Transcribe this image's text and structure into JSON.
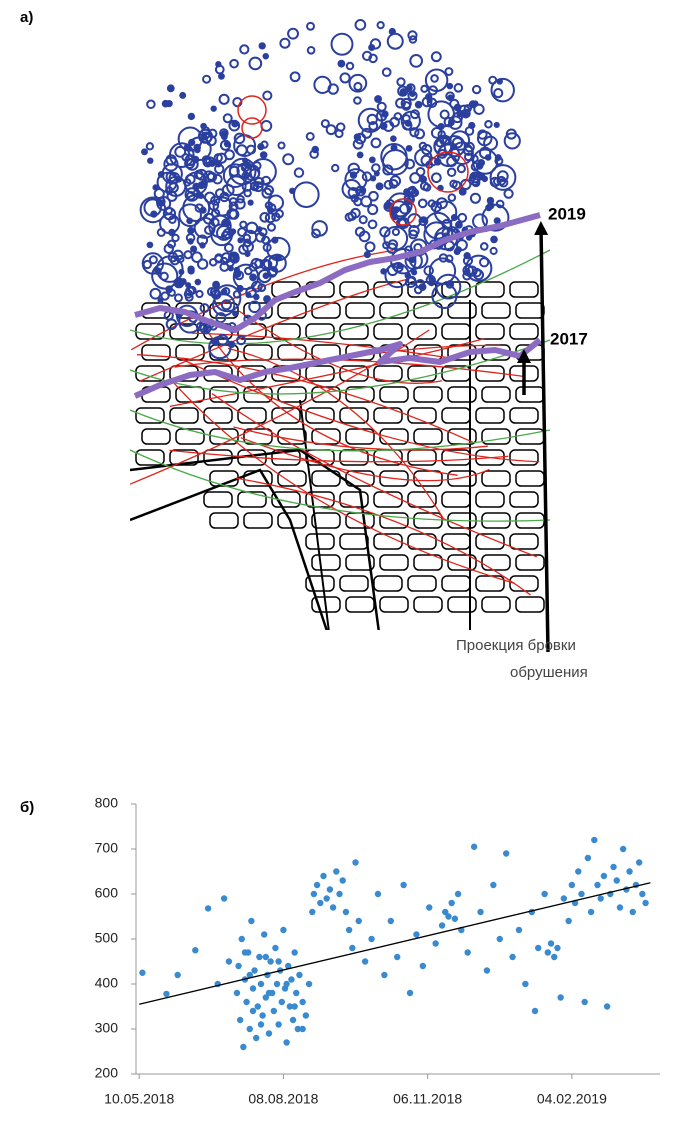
{
  "panel_labels": [
    "а)",
    "б)"
  ],
  "map": {
    "label_2019": "2019",
    "label_2017": "2017",
    "caption": [
      "Проекция бровки",
      "обрушения"
    ]
  },
  "chart_data": {
    "type": "scatter",
    "color": "#3a8ad0",
    "xlim": [
      "08.05.2018",
      "31.03.2019"
    ],
    "xticks": [
      "10.05.2018",
      "08.08.2018",
      "06.11.2018",
      "04.02.2019"
    ],
    "ylim": [
      200,
      800
    ],
    "yticks": [
      200,
      300,
      400,
      500,
      600,
      700,
      800
    ],
    "trendline": {
      "color": "#000000",
      "x": [
        "10.05.2018",
        "25.03.2019"
      ],
      "values": [
        355,
        625
      ]
    },
    "x": [
      "12.05.2018",
      "27.05.2018",
      "03.06.2018",
      "14.06.2018",
      "22.06.2018",
      "28.06.2018",
      "02.07.2018",
      "05.07.2018",
      "10.07.2018",
      "11.07.2018",
      "12.07.2018",
      "13.07.2018",
      "14.07.2018",
      "15.07.2018",
      "16.07.2018",
      "17.07.2018",
      "18.07.2018",
      "19.07.2018",
      "20.07.2018",
      "21.07.2018",
      "22.07.2018",
      "23.07.2018",
      "24.07.2018",
      "25.07.2018",
      "26.07.2018",
      "27.07.2018",
      "28.07.2018",
      "29.07.2018",
      "30.07.2018",
      "31.07.2018",
      "01.08.2018",
      "02.08.2018",
      "03.08.2018",
      "04.08.2018",
      "05.08.2018",
      "06.08.2018",
      "07.08.2018",
      "08.08.2018",
      "09.08.2018",
      "10.08.2018",
      "11.08.2018",
      "12.08.2018",
      "13.08.2018",
      "14.08.2018",
      "15.08.2018",
      "16.08.2018",
      "17.08.2018",
      "18.08.2018",
      "20.08.2018",
      "22.08.2018",
      "24.08.2018",
      "26.08.2018",
      "15.07.2018",
      "20.07.2018",
      "25.07.2018",
      "30.07.2018",
      "05.08.2018",
      "10.08.2018",
      "15.08.2018",
      "20.08.2018",
      "18.07.2018",
      "28.07.2018",
      "27.08.2018",
      "29.08.2018",
      "31.08.2018",
      "02.09.2018",
      "04.09.2018",
      "06.09.2018",
      "08.09.2018",
      "10.09.2018",
      "12.09.2018",
      "14.09.2018",
      "16.09.2018",
      "18.09.2018",
      "20.09.2018",
      "22.09.2018",
      "24.09.2018",
      "28.09.2018",
      "02.10.2018",
      "06.10.2018",
      "10.10.2018",
      "14.10.2018",
      "18.10.2018",
      "22.10.2018",
      "26.10.2018",
      "30.10.2018",
      "03.11.2018",
      "07.11.2018",
      "11.11.2018",
      "15.11.2018",
      "17.11.2018",
      "19.11.2018",
      "21.11.2018",
      "23.11.2018",
      "25.11.2018",
      "27.11.2018",
      "01.12.2018",
      "05.12.2018",
      "09.12.2018",
      "13.12.2018",
      "17.12.2018",
      "21.12.2018",
      "25.12.2018",
      "29.12.2018",
      "02.01.2019",
      "06.01.2019",
      "10.01.2019",
      "12.01.2019",
      "14.01.2019",
      "18.01.2019",
      "20.01.2019",
      "22.01.2019",
      "24.01.2019",
      "26.01.2019",
      "28.01.2019",
      "30.01.2019",
      "02.02.2019",
      "04.02.2019",
      "06.02.2019",
      "08.02.2019",
      "10.02.2019",
      "12.02.2019",
      "14.02.2019",
      "16.02.2019",
      "18.02.2019",
      "20.02.2019",
      "22.02.2019",
      "24.02.2019",
      "26.02.2019",
      "28.02.2019",
      "02.03.2019",
      "04.03.2019",
      "06.03.2019",
      "08.03.2019",
      "10.03.2019",
      "12.03.2019",
      "14.03.2019",
      "16.03.2019",
      "18.03.2019",
      "20.03.2019",
      "22.03.2019"
    ],
    "values": [
      425,
      378,
      420,
      475,
      568,
      400,
      590,
      450,
      380,
      440,
      320,
      500,
      260,
      410,
      360,
      470,
      300,
      540,
      390,
      430,
      280,
      350,
      460,
      400,
      330,
      510,
      370,
      420,
      290,
      450,
      380,
      340,
      480,
      400,
      310,
      430,
      360,
      520,
      390,
      270,
      440,
      350,
      410,
      320,
      470,
      380,
      300,
      420,
      360,
      330,
      400,
      560,
      470,
      340,
      310,
      380,
      450,
      400,
      350,
      300,
      420,
      460,
      600,
      620,
      580,
      640,
      590,
      610,
      570,
      650,
      600,
      630,
      560,
      520,
      480,
      670,
      540,
      450,
      500,
      600,
      420,
      540,
      460,
      620,
      380,
      510,
      440,
      570,
      490,
      530,
      560,
      550,
      580,
      545,
      600,
      520,
      470,
      705,
      560,
      430,
      620,
      500,
      690,
      460,
      520,
      400,
      560,
      340,
      480,
      600,
      470,
      490,
      460,
      480,
      370,
      590,
      540,
      620,
      580,
      650,
      600,
      360,
      680,
      560,
      720,
      620,
      590,
      640,
      350,
      600,
      660,
      630,
      570,
      700,
      610,
      650,
      560,
      620,
      670,
      600,
      580
    ]
  }
}
